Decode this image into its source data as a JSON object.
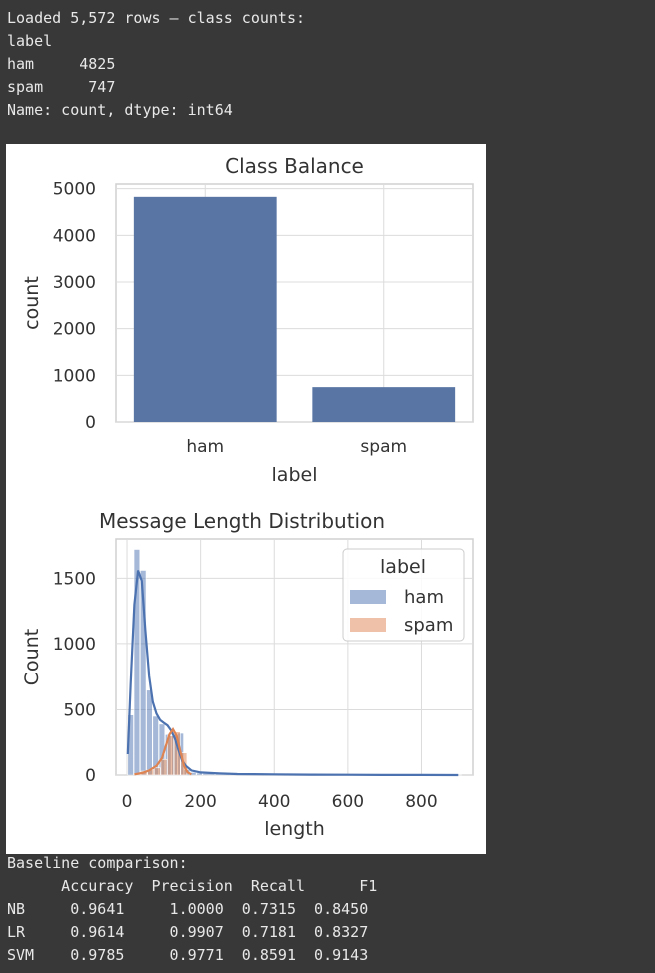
{
  "output_top": {
    "lines": [
      "Loaded 5,572 rows — class counts:",
      "label",
      "ham     4825",
      "spam     747",
      "Name: count, dtype: int64"
    ]
  },
  "output_bottom": {
    "lines": [
      "Baseline comparison:",
      "      Accuracy  Precision  Recall      F1",
      "NB     0.9641     1.0000  0.7315  0.8450",
      "LR     0.9614     0.9907  0.7181  0.8327",
      "SVM    0.9785     0.9771  0.8591  0.9143"
    ]
  },
  "chart_data": [
    {
      "type": "bar",
      "title": "Class Balance",
      "xlabel": "label",
      "ylabel": "count",
      "categories": [
        "ham",
        "spam"
      ],
      "values": [
        4825,
        747
      ],
      "ylim": [
        0,
        5100
      ],
      "yticks": [
        0,
        1000,
        2000,
        3000,
        4000,
        5000
      ],
      "color": "#5875a4",
      "grid": true
    },
    {
      "type": "bar",
      "title": "Message Length Distribution",
      "xlabel": "length",
      "ylabel": "Count",
      "xlim": [
        -30,
        940
      ],
      "ylim": [
        0,
        1800
      ],
      "xticks": [
        0,
        200,
        400,
        600,
        800
      ],
      "yticks": [
        0,
        500,
        1000,
        1500
      ],
      "legend": {
        "title": "label",
        "position": "top-right"
      },
      "grid": true,
      "series": [
        {
          "name": "ham",
          "color": "#4c72b0",
          "bin_edges": [
            2,
            19,
            36,
            53,
            70,
            87,
            104,
            121,
            138,
            155,
            172,
            189,
            206,
            240,
            280,
            320,
            360,
            420,
            500,
            600,
            700,
            800,
            910
          ],
          "counts": [
            460,
            1720,
            1560,
            650,
            450,
            390,
            310,
            310,
            320,
            40,
            20,
            15,
            12,
            10,
            8,
            6,
            4,
            3,
            2,
            2,
            1,
            1
          ],
          "kde_x": [
            2,
            10,
            20,
            30,
            40,
            50,
            60,
            70,
            80,
            90,
            100,
            110,
            120,
            130,
            140,
            150,
            160,
            175,
            200,
            250,
            300,
            400,
            500,
            600,
            700,
            800,
            900
          ],
          "kde_y": [
            160,
            700,
            1300,
            1560,
            1480,
            1100,
            760,
            560,
            470,
            420,
            400,
            380,
            340,
            280,
            190,
            110,
            70,
            35,
            20,
            12,
            8,
            5,
            3,
            2,
            1,
            1,
            0
          ]
        },
        {
          "name": "spam",
          "color": "#dd8452",
          "bin_edges": [
            20,
            38,
            56,
            74,
            92,
            110,
            128,
            146,
            164
          ],
          "counts": [
            10,
            30,
            40,
            55,
            120,
            300,
            330,
            170
          ],
          "kde_x": [
            20,
            40,
            60,
            80,
            95,
            105,
            115,
            125,
            135,
            145,
            155,
            165,
            175
          ],
          "kde_y": [
            5,
            15,
            35,
            70,
            130,
            220,
            310,
            350,
            300,
            180,
            70,
            20,
            5
          ]
        }
      ]
    }
  ]
}
